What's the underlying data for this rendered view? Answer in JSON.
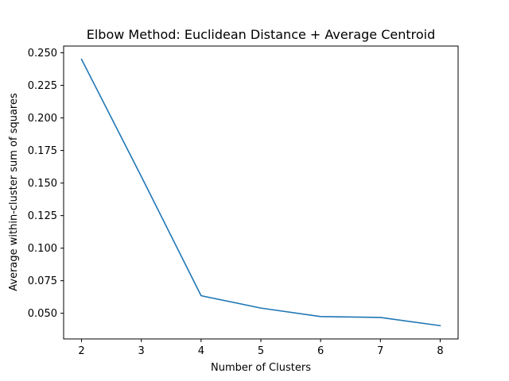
{
  "chart_data": {
    "type": "line",
    "title": "Elbow Method: Euclidean Distance + Average Centroid",
    "xlabel": "Number of Clusters",
    "ylabel": "Average within-cluster sum of squares",
    "x": [
      2,
      3,
      4,
      5,
      6,
      7,
      8
    ],
    "series": [
      {
        "values": [
          0.245,
          0.155,
          0.0635,
          0.054,
          0.0475,
          0.0468,
          0.0405
        ],
        "color": "#1f77b4"
      }
    ],
    "xlim": [
      1.7,
      8.3
    ],
    "ylim": [
      0.0303,
      0.2552
    ],
    "x_ticks": [
      "2",
      "3",
      "4",
      "5",
      "6",
      "7",
      "8"
    ],
    "y_ticks": [
      "0.050",
      "0.075",
      "0.100",
      "0.125",
      "0.150",
      "0.175",
      "0.200",
      "0.225",
      "0.250"
    ],
    "grid": false,
    "legend": false
  }
}
